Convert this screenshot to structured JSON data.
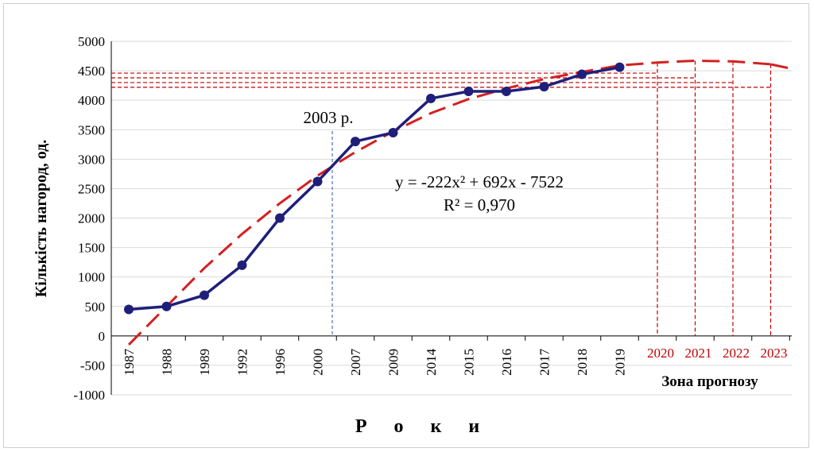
{
  "chart_data": {
    "type": "line",
    "title": "",
    "xlabel": "Р о к и",
    "ylabel": "Кількість нагород, од.",
    "ylim": [
      -1000,
      5000
    ],
    "y_ticks": [
      "5000",
      "4500",
      "4000",
      "3500",
      "3000",
      "2500",
      "2000",
      "1500",
      "1000",
      "500",
      "0",
      "-500",
      "-1000"
    ],
    "categories": [
      "1987",
      "1988",
      "1989",
      "1992",
      "1996",
      "2000",
      "2007",
      "2009",
      "2014",
      "2015",
      "2016",
      "2017",
      "2018",
      "2019"
    ],
    "forecast_categories": [
      "2020",
      "2021",
      "2022",
      "2023"
    ],
    "series": [
      {
        "values": [
          450,
          500,
          690,
          1200,
          2000,
          2620,
          3300,
          3450,
          4030,
          4150,
          4150,
          4230,
          4440,
          4560
        ]
      }
    ],
    "trendline": {
      "equation": "y = -222x² + 692x - 7522",
      "r2_text": "R² = 0,970",
      "values": [
        -150,
        500,
        1150,
        1730,
        2250,
        2720,
        3120,
        3470,
        3780,
        4020,
        4200,
        4360,
        4480,
        4590
      ],
      "forecast_values": [
        4640,
        4670,
        4660,
        4610
      ]
    },
    "annotation": "2003 р.",
    "forecast_zone_label": "Зона прогнозу",
    "grid": true,
    "colors": {
      "series": "#1f1f7a",
      "trend": "#d42020",
      "forecast": "#c00000",
      "marker_line": "#4472c4"
    }
  }
}
